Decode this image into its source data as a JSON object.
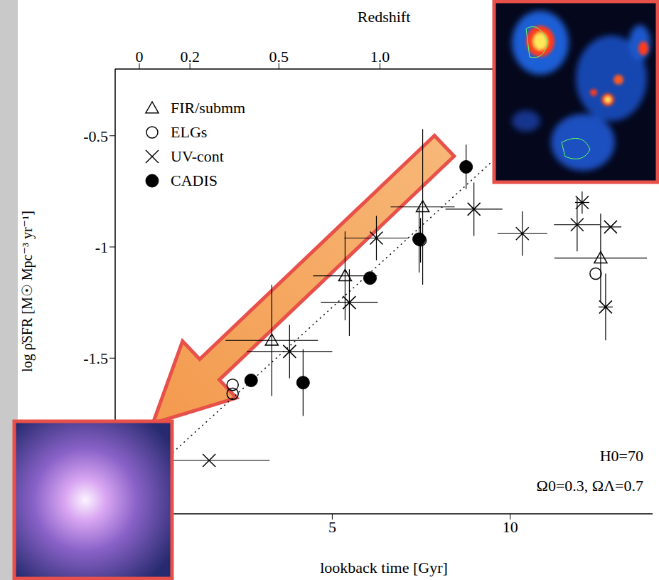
{
  "chart_data": {
    "type": "scatter",
    "x_label": "lookback time  [Gyr]",
    "y_label": "log ρ̇SFR  [M☉ Mpc⁻³ yr⁻¹]",
    "x2_label": "Redshift",
    "xlim": [
      -1.1,
      14
    ],
    "ylim": [
      -2.2,
      -0.2
    ],
    "xticks": [
      5,
      10
    ],
    "yticks": [
      -1.5,
      -1,
      -0.5
    ],
    "x2ticks": [
      {
        "value": -0.42,
        "label": "0"
      },
      {
        "value": 1.0,
        "label": "0.2"
      },
      {
        "value": 3.5,
        "label": "0.5"
      },
      {
        "value": 6.34,
        "label": "1.0"
      }
    ],
    "grid": false,
    "legend": "upper left",
    "series": [
      {
        "name": "FIR/submm",
        "marker": "triangle_open",
        "color": "#000000",
        "x": [
          3.3,
          5.36,
          7.54,
          12.54
        ],
        "y": [
          -1.42,
          -1.13,
          -0.82,
          -1.05
        ],
        "xerr": [
          1.3,
          0.9,
          0.9,
          1.3
        ],
        "yerr": [
          0.25,
          0.2,
          0.35,
          0.2
        ]
      },
      {
        "name": "ELGs",
        "marker": "circle_open",
        "color": "#000000",
        "x": [
          2.2,
          2.2,
          7.48,
          12.4
        ],
        "y": [
          -1.62,
          -1.66,
          -0.97,
          -1.12
        ],
        "xerr": [
          0,
          0,
          0,
          0
        ],
        "yerr": [
          0,
          0,
          0.1,
          0
        ]
      },
      {
        "name": "UV-cont",
        "marker": "x",
        "color": "#000000",
        "x": [
          1.54,
          3.8,
          5.48,
          6.24,
          8.98,
          10.34,
          11.88,
          12.02,
          12.82,
          12.68
        ],
        "y": [
          -1.96,
          -1.47,
          -1.25,
          -0.96,
          -0.83,
          -0.94,
          -0.9,
          -0.8,
          -0.91,
          -1.27
        ],
        "xerr": [
          1.7,
          1.2,
          0.8,
          0.9,
          0.8,
          0.7,
          0.65,
          0.2,
          0.3,
          0.2
        ],
        "yerr": [
          0,
          0.12,
          0.15,
          0.1,
          0.12,
          0.1,
          0.12,
          0.05,
          0,
          0.15
        ]
      },
      {
        "name": "CADIS",
        "marker": "circle_filled",
        "color": "#000000",
        "x": [
          2.72,
          4.18,
          6.06,
          7.44,
          8.76
        ],
        "y": [
          -1.6,
          -1.61,
          -1.14,
          -0.965,
          -0.64
        ],
        "xerr": [
          0,
          0,
          0,
          0,
          0
        ],
        "yerr": [
          0,
          0.15,
          0,
          0.15,
          0.1
        ]
      }
    ],
    "fit": {
      "x": [
        0,
        9.6
      ],
      "y": [
        -2.0,
        -0.6
      ],
      "line_style": "dotted",
      "color": "#000000"
    },
    "annotations": [
      "H0=70",
      "Ω0=0.3, ΩΛ=0.7"
    ]
  }
}
